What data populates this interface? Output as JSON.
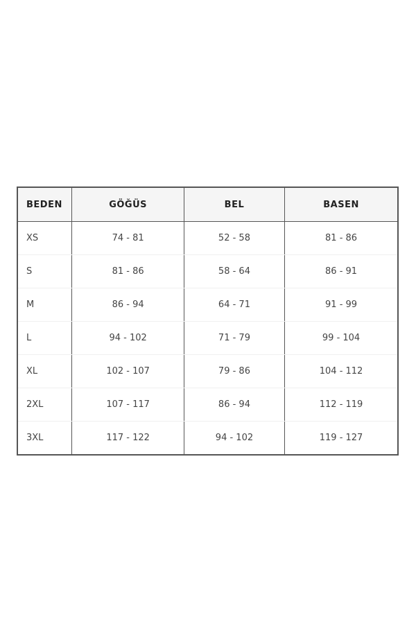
{
  "table": {
    "headers": [
      "BEDEN",
      "GÖĞÜS",
      "BEL",
      "BASEN"
    ],
    "rows": [
      [
        "XS",
        "74 - 81",
        "52 - 58",
        "81 - 86"
      ],
      [
        "S",
        "81 - 86",
        "58 - 64",
        "86 - 91"
      ],
      [
        "M",
        "86 - 94",
        "64 - 71",
        "91 - 99"
      ],
      [
        "L",
        "94 - 102",
        "71 - 79",
        "99 - 104"
      ],
      [
        "XL",
        "102 - 107",
        "79 - 86",
        "104 - 112"
      ],
      [
        "2XL",
        "107 - 117",
        "86 - 94",
        "112 - 119"
      ],
      [
        "3XL",
        "117 - 122",
        "94 - 102",
        "119 - 127"
      ]
    ]
  }
}
